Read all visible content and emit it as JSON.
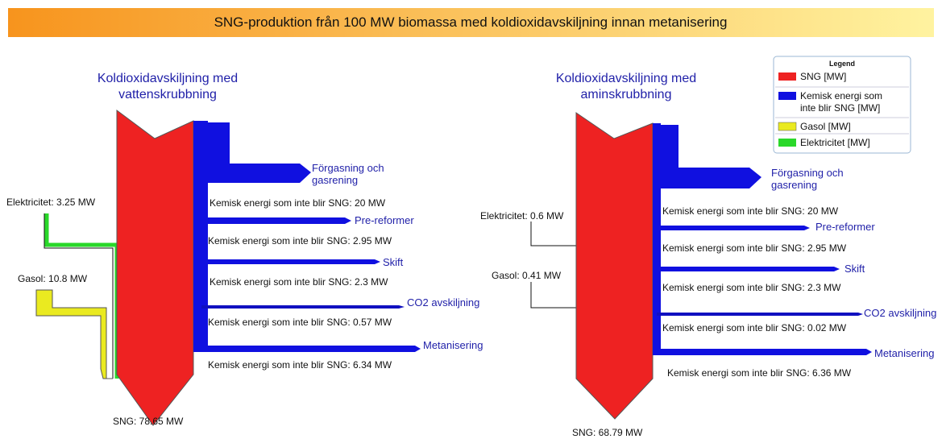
{
  "header": {
    "title": "SNG-produktion från 100 MW biomassa med koldioxidavskiljning innan metanisering"
  },
  "diagrams": [
    {
      "title": [
        "Koldioxidavskiljning med",
        "vattenskrubbning"
      ],
      "inputs": [
        "Elektricitet: 3.25 MW",
        "Gasol: 10.8 MW"
      ],
      "outputs": [
        {
          "name": [
            "Förgasning och",
            "gasrening"
          ],
          "label": "Kemisk energi som inte blir SNG: 20 MW"
        },
        {
          "name": [
            "Pre-reformer"
          ],
          "label": "Kemisk energi som inte blir SNG: 2.95 MW"
        },
        {
          "name": [
            "Skift"
          ],
          "label": "Kemisk energi som inte blir SNG: 2.3 MW"
        },
        {
          "name": [
            "CO2 avskiljning"
          ],
          "label": "Kemisk energi som inte blir SNG: 0.57 MW"
        },
        {
          "name": [
            "Metanisering"
          ],
          "label": "Kemisk energi som inte blir SNG: 6.34 MW"
        }
      ],
      "total": "SNG: 78.65 MW"
    },
    {
      "title": [
        "Koldioxidavskiljning med",
        "aminskrubbning"
      ],
      "inputs": [
        "Elektricitet: 0.6 MW",
        "Gasol: 0.41 MW"
      ],
      "outputs": [
        {
          "name": [
            "Förgasning och",
            "gasrening"
          ],
          "label": "Kemisk energi som inte blir SNG: 20 MW"
        },
        {
          "name": [
            "Pre-reformer"
          ],
          "label": "Kemisk energi som inte blir SNG: 2.95 MW"
        },
        {
          "name": [
            "Skift"
          ],
          "label": "Kemisk energi som inte blir SNG: 2.3 MW"
        },
        {
          "name": [
            "CO2 avskiljning"
          ],
          "label": "Kemisk energi som inte blir SNG: 0.02 MW"
        },
        {
          "name": [
            "Metanisering"
          ],
          "label": "Kemisk energi som inte blir SNG: 6.36 MW"
        }
      ],
      "total": "SNG: 68.79 MW"
    }
  ],
  "legend": {
    "title": "Legend",
    "items": [
      [
        "SNG [MW]"
      ],
      [
        "Kemisk energi som",
        "inte blir SNG [MW]"
      ],
      [
        "Gasol [MW]"
      ],
      [
        "Elektricitet [MW]"
      ]
    ]
  }
}
